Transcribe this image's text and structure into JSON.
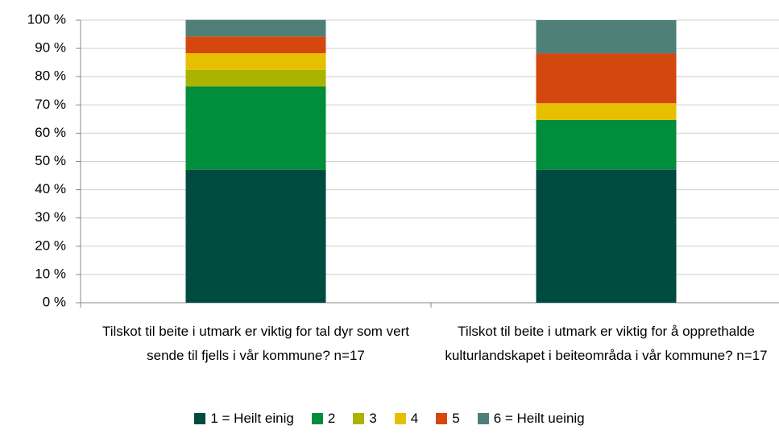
{
  "chart_data": {
    "type": "stacked_bar",
    "categories": [
      "Tilskot til beite i utmark er viktig for tal dyr som vert sende til fjells i vår kommune? n=17",
      "Tilskot til beite i utmark er viktig for å opprethalde kulturlandskapet i beiteområda i vår kommune? n=17"
    ],
    "series": [
      {
        "name": "1 = Heilt einig",
        "color": "#004b40",
        "values": [
          47.1,
          47.1
        ]
      },
      {
        "name": "2",
        "color": "#008d3c",
        "values": [
          29.4,
          17.6
        ]
      },
      {
        "name": "3",
        "color": "#a9b300",
        "values": [
          5.9,
          0
        ]
      },
      {
        "name": "4",
        "color": "#e6bf00",
        "values": [
          5.9,
          5.9
        ]
      },
      {
        "name": "5",
        "color": "#d4470e",
        "values": [
          5.9,
          17.6
        ]
      },
      {
        "name": "6 = Heilt ueinig",
        "color": "#4e8078",
        "values": [
          5.9,
          11.8
        ]
      }
    ],
    "ylim": [
      0,
      100
    ],
    "yticks": [
      {
        "value": 0,
        "label": "0 %"
      },
      {
        "value": 10,
        "label": "10 %"
      },
      {
        "value": 20,
        "label": "20 %"
      },
      {
        "value": 30,
        "label": "30 %"
      },
      {
        "value": 40,
        "label": "40 %"
      },
      {
        "value": 50,
        "label": "50 %"
      },
      {
        "value": 60,
        "label": "60 %"
      },
      {
        "value": 70,
        "label": "70 %"
      },
      {
        "value": 80,
        "label": "80 %"
      },
      {
        "value": 90,
        "label": "90 %"
      },
      {
        "value": 100,
        "label": "100 %"
      }
    ],
    "grid": true,
    "legend": "bottom"
  }
}
